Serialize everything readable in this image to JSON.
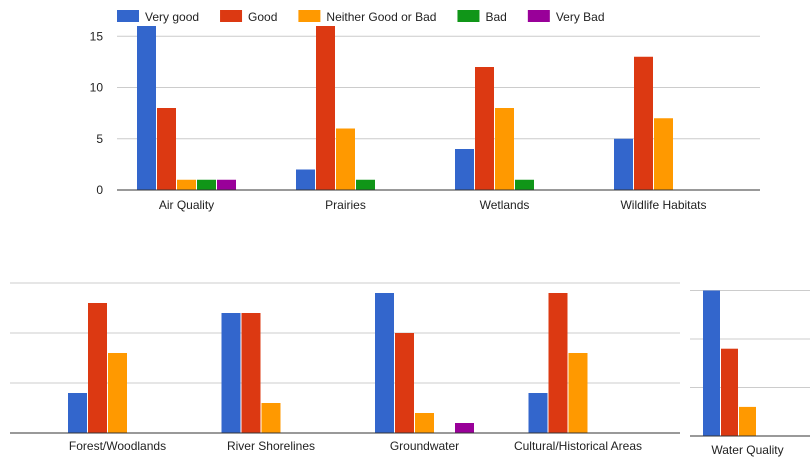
{
  "chart_data": [
    {
      "type": "bar",
      "legend_position": "top",
      "ylim": [
        0,
        16
      ],
      "yticks": [
        0,
        5,
        10,
        15
      ],
      "grid": true,
      "categories": [
        "Air Quality",
        "Prairies",
        "Wetlands",
        "Wildlife Habitats"
      ],
      "series": [
        {
          "name": "Very good",
          "color": "#3366cc",
          "values": [
            16,
            2,
            4,
            5
          ]
        },
        {
          "name": "Good",
          "color": "#dc3912",
          "values": [
            8,
            16,
            12,
            13
          ]
        },
        {
          "name": "Neither Good or Bad",
          "color": "#ff9900",
          "values": [
            1,
            6,
            8,
            7
          ]
        },
        {
          "name": "Bad",
          "color": "#109618",
          "values": [
            1,
            1,
            1,
            0
          ]
        },
        {
          "name": "Very Bad",
          "color": "#990099",
          "values": [
            1,
            0,
            0,
            0
          ]
        }
      ]
    },
    {
      "type": "bar",
      "ylim": [
        0,
        15
      ],
      "grid": true,
      "categories": [
        "Forest/Woodlands",
        "River Shorelines",
        "Groundwater",
        "Cultural/Historical Areas"
      ],
      "series": [
        {
          "name": "Very good",
          "color": "#3366cc",
          "values": [
            4,
            12,
            14,
            4
          ]
        },
        {
          "name": "Good",
          "color": "#dc3912",
          "values": [
            13,
            12,
            10,
            14
          ]
        },
        {
          "name": "Neither Good or Bad",
          "color": "#ff9900",
          "values": [
            8,
            3,
            2,
            8
          ]
        },
        {
          "name": "Bad",
          "color": "#109618",
          "values": [
            0,
            0,
            0,
            0
          ]
        },
        {
          "name": "Very Bad",
          "color": "#990099",
          "values": [
            0,
            0,
            1,
            0
          ]
        }
      ]
    },
    {
      "type": "bar",
      "ylim": [
        0,
        15
      ],
      "grid": true,
      "categories": [
        "Water Quality"
      ],
      "series": [
        {
          "name": "Very good",
          "color": "#3366cc",
          "values": [
            15
          ]
        },
        {
          "name": "Good",
          "color": "#dc3912",
          "values": [
            9
          ]
        },
        {
          "name": "Neither Good or Bad",
          "color": "#ff9900",
          "values": [
            3
          ]
        },
        {
          "name": "Bad",
          "color": "#109618",
          "values": [
            0
          ]
        },
        {
          "name": "Very Bad",
          "color": "#990099",
          "values": [
            0
          ]
        }
      ]
    }
  ]
}
